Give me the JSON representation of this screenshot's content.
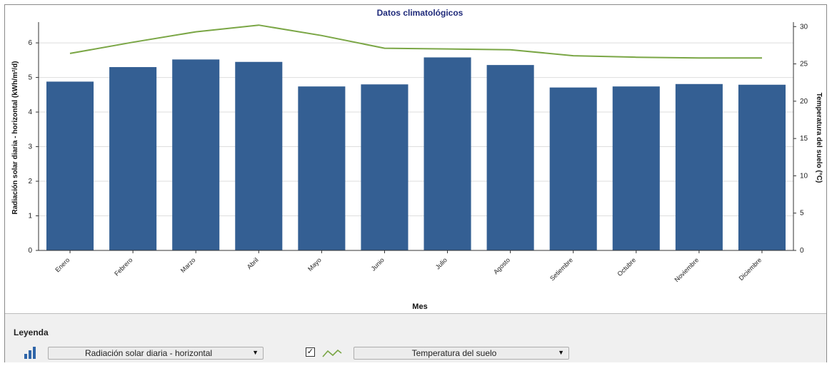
{
  "chart_data": {
    "type": "bar+line",
    "title": "Datos climatológicos",
    "xlabel": "Mes",
    "categories": [
      "Enero",
      "Febrero",
      "Marzo",
      "Abril",
      "Mayo",
      "Junio",
      "Julio",
      "Agosto",
      "Setiembre",
      "Octubre",
      "Noviembre",
      "Diciembre"
    ],
    "series": [
      {
        "name": "Radiación solar diaria - horizontal",
        "type": "bar",
        "axis": "left",
        "color": "#345f93",
        "values": [
          4.88,
          5.3,
          5.52,
          5.45,
          4.74,
          4.8,
          5.58,
          5.36,
          4.71,
          4.74,
          4.81,
          4.79
        ]
      },
      {
        "name": "Temperatura del suelo",
        "type": "line",
        "axis": "right",
        "color": "#7aa645",
        "values": [
          26.4,
          27.9,
          29.3,
          30.2,
          28.8,
          27.1,
          27.0,
          26.9,
          26.1,
          25.9,
          25.8,
          25.8
        ]
      }
    ],
    "y_left": {
      "label": "Radiación solar diaria - horizontal (kWh/m²/d)",
      "ylim": [
        0,
        6.6
      ],
      "ticks": [
        0,
        1,
        2,
        3,
        4,
        5,
        6
      ]
    },
    "y_right": {
      "label": "Temperatura del suelo (°C)",
      "ylim": [
        0,
        30.6
      ],
      "ticks": [
        0,
        5,
        10,
        15,
        20,
        25,
        30
      ]
    },
    "grid": true
  },
  "legend": {
    "title": "Leyenda",
    "checkbox_checked": true,
    "checkbox_mark": "✓",
    "bar_icon": "bar-chart-icon",
    "line_icon": "line-chart-icon",
    "dropdown1_value": "Radiación solar diaria - horizontal",
    "dropdown2_value": "Temperatura del suelo",
    "dropdown_arrow": "▼"
  }
}
